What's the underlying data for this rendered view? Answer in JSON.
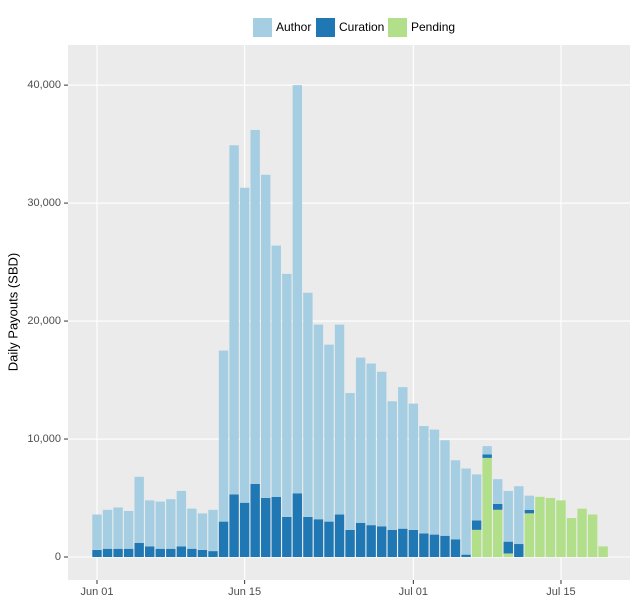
{
  "chart_data": {
    "type": "bar",
    "stacked": true,
    "y_label": "Daily Payouts (SBD)",
    "categories": [
      "Jun 01",
      null,
      null,
      null,
      null,
      null,
      null,
      null,
      null,
      null,
      null,
      null,
      null,
      null,
      "Jun 15",
      null,
      null,
      null,
      null,
      null,
      null,
      null,
      null,
      null,
      null,
      null,
      null,
      null,
      null,
      null,
      "Jul 01",
      null,
      null,
      null,
      null,
      null,
      null,
      null,
      null,
      null,
      null,
      null,
      null,
      null,
      "Jul 15",
      null,
      null,
      null,
      null
    ],
    "series": [
      {
        "name": "Author",
        "color": "#a6cee3",
        "values": [
          3000,
          3300,
          3500,
          3200,
          5600,
          3900,
          4000,
          4200,
          4700,
          3400,
          3100,
          3500,
          14500,
          29600,
          26700,
          30000,
          27400,
          21300,
          20600,
          34600,
          19000,
          16500,
          15000,
          16100,
          11600,
          14000,
          13700,
          13100,
          10900,
          12000,
          10700,
          9100,
          8900,
          8100,
          6700,
          7300,
          3900,
          700,
          2100,
          4300,
          4900,
          1200,
          0,
          0,
          0,
          0,
          0,
          0,
          0
        ]
      },
      {
        "name": "Curation",
        "color": "#1f78b4",
        "values": [
          600,
          700,
          700,
          700,
          1200,
          900,
          700,
          700,
          900,
          700,
          600,
          500,
          3000,
          5300,
          4600,
          6200,
          5000,
          5100,
          3400,
          5400,
          3400,
          3200,
          3000,
          3600,
          2300,
          2900,
          2700,
          2600,
          2300,
          2400,
          2300,
          2000,
          1900,
          1800,
          1500,
          200,
          800,
          300,
          500,
          1000,
          1100,
          300,
          0,
          0,
          0,
          0,
          0,
          0,
          0
        ]
      },
      {
        "name": "Pending",
        "color": "#b2df8a",
        "values": [
          0,
          0,
          0,
          0,
          0,
          0,
          0,
          0,
          0,
          0,
          0,
          0,
          0,
          0,
          0,
          0,
          0,
          0,
          0,
          0,
          0,
          0,
          0,
          0,
          0,
          0,
          0,
          0,
          0,
          0,
          0,
          0,
          0,
          0,
          0,
          0,
          2300,
          8400,
          4000,
          300,
          0,
          3700,
          5100,
          5000,
          4800,
          3300,
          4100,
          3600,
          900
        ]
      }
    ],
    "ylim": [
      -1950,
      43400
    ],
    "yticks": [
      0,
      {
        "value": 10000,
        "label": "10,000"
      },
      {
        "value": 20000,
        "label": "20,000"
      },
      {
        "value": 30000,
        "label": "30,000"
      },
      {
        "value": 40000,
        "label": "40,000"
      }
    ],
    "grid": true,
    "legend": "top"
  }
}
